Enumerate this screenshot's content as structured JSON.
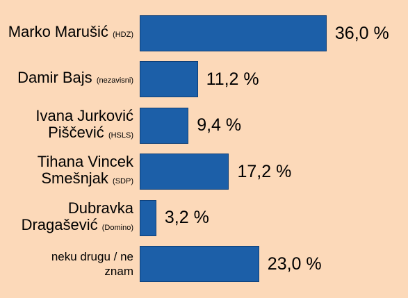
{
  "chart_data": {
    "type": "bar",
    "orientation": "horizontal",
    "categories": [
      "Marko Marušić",
      "Damir Bajs",
      "Ivana Jurković Piščević",
      "Tihana Vincek Smešnjak",
      "Dubravka Dragašević",
      "neku drugu / ne znam"
    ],
    "parties": [
      "(HDZ)",
      "(nezavisni)",
      "(HSLS)",
      "(SDP)",
      "(Domino)",
      null
    ],
    "values": [
      36.0,
      11.2,
      9.4,
      17.2,
      3.2,
      23.0
    ],
    "value_labels": [
      "36,0 %",
      "11,2 %",
      "9,4 %",
      "17,2 %",
      "3,2 %",
      "23,0 %"
    ],
    "color": "#1c5fa8"
  }
}
